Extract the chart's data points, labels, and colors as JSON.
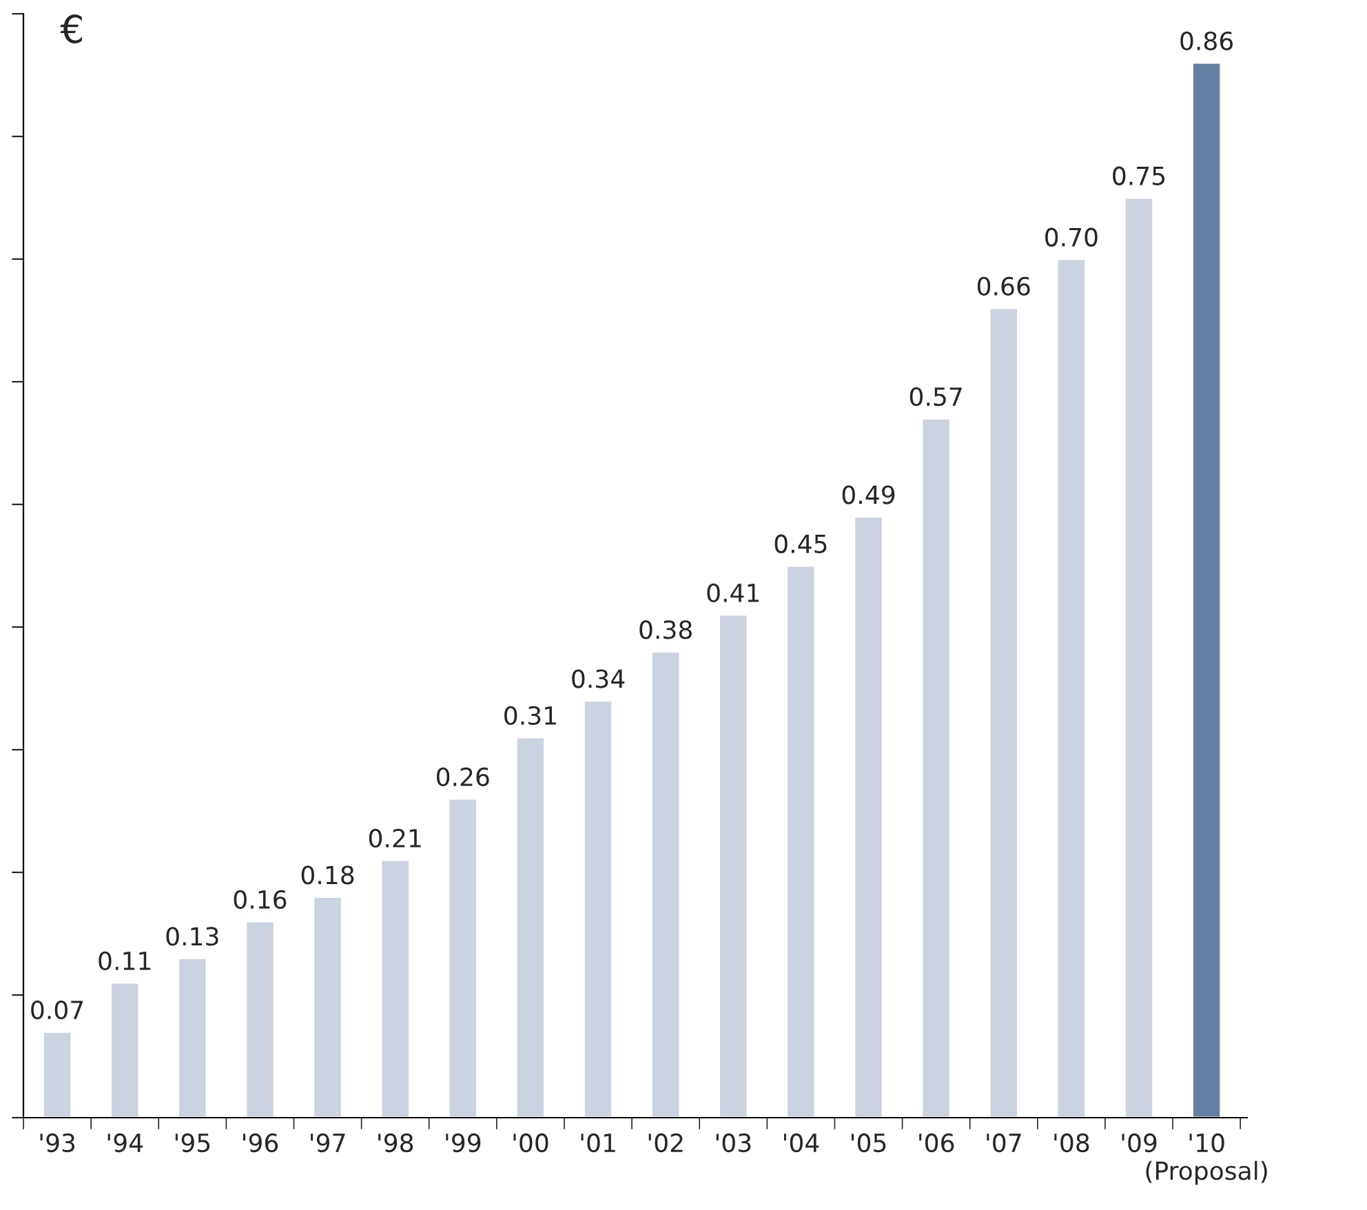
{
  "chart_data": {
    "type": "bar",
    "ylabel": "€",
    "categories": [
      "'93",
      "'94",
      "'95",
      "'96",
      "'97",
      "'98",
      "'99",
      "'00",
      "'01",
      "'02",
      "'03",
      "'04",
      "'05",
      "'06",
      "'07",
      "'08",
      "'09",
      "'10\n(Proposal)"
    ],
    "values": [
      0.07,
      0.11,
      0.13,
      0.16,
      0.18,
      0.21,
      0.26,
      0.31,
      0.34,
      0.38,
      0.41,
      0.45,
      0.49,
      0.57,
      0.66,
      0.7,
      0.75,
      0.86
    ],
    "colors": [
      "#cbd3e0",
      "#cbd3e0",
      "#cbd3e0",
      "#cbd3e0",
      "#cbd3e0",
      "#cbd3e0",
      "#cbd3e0",
      "#cbd3e0",
      "#cbd3e0",
      "#cbd3e0",
      "#cbd3e0",
      "#cbd3e0",
      "#cbd3e0",
      "#cbd3e0",
      "#cbd3e0",
      "#cbd3e0",
      "#cbd3e0",
      "#647fa3"
    ],
    "ylim": [
      0,
      0.9
    ],
    "yticks": [
      {
        "value": 0,
        "label": null
      },
      {
        "value": 0.1,
        "label": null
      },
      {
        "value": 0.2,
        "label": null
      },
      {
        "value": 0.3,
        "label": null
      },
      {
        "value": 0.4,
        "label": null
      },
      {
        "value": 0.5,
        "label": null
      },
      {
        "value": 0.6,
        "label": null
      },
      {
        "value": 0.7,
        "label": null
      },
      {
        "value": 0.8,
        "label": null
      },
      {
        "value": 0.9,
        "label": null
      }
    ],
    "value_labels": [
      "0.07",
      "0.11",
      "0.13",
      "0.16",
      "0.18",
      "0.21",
      "0.26",
      "0.31",
      "0.34",
      "0.38",
      "0.41",
      "0.45",
      "0.49",
      "0.57",
      "0.66",
      "0.70",
      "0.75",
      "0.86"
    ],
    "tick_labels": "x",
    "grid": false,
    "legend": false
  }
}
